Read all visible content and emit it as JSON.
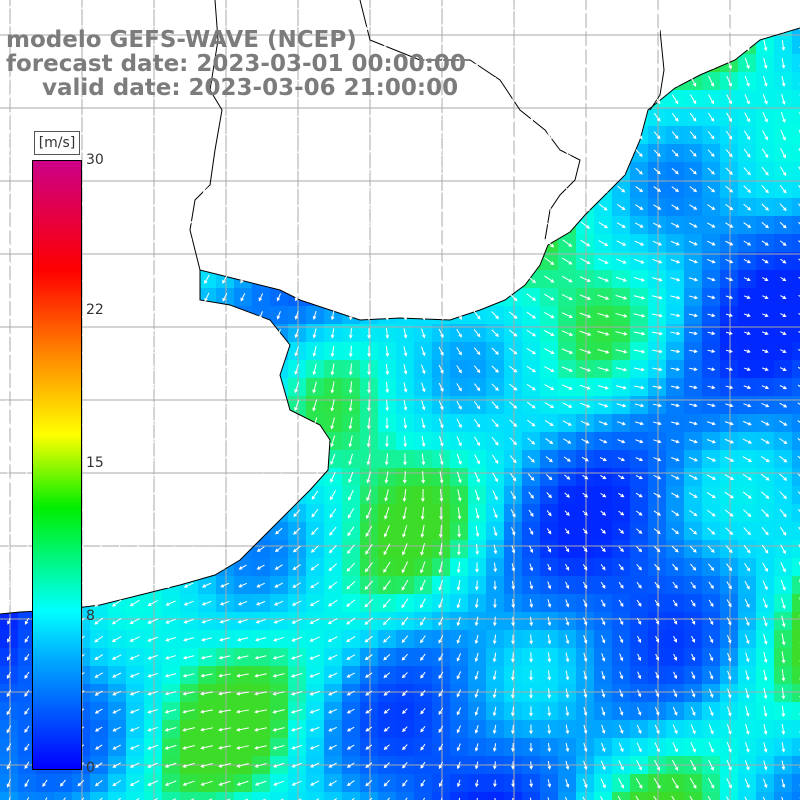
{
  "titles": {
    "model": "modelo GEFS-WAVE (NCEP)",
    "forecast": "forecast date: 2023-03-01 00:00:00",
    "valid": "valid date: 2023-03-06 21:00:00"
  },
  "colorbar": {
    "unit": "[m/s]",
    "ticks": [
      "0",
      "8",
      "15",
      "22",
      "30"
    ],
    "range": [
      0,
      30
    ],
    "colors": [
      "#0000ff",
      "#00aaff",
      "#00ffff",
      "#00ee00",
      "#ffff00",
      "#ff8800",
      "#ff0000",
      "#cc0088"
    ]
  },
  "map": {
    "field": "wind speed with direction arrows",
    "land_color": "#ffffff",
    "grid_color": "#aaaaaa",
    "coastline_color": "#000000",
    "arrow_color": "#ffffff"
  }
}
